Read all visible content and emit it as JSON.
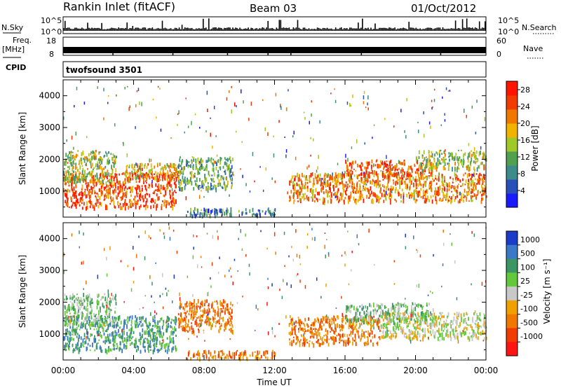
{
  "header": {
    "station": "Rankin Inlet (fitACF)",
    "beam": "Beam 03",
    "date": "01/Oct/2012"
  },
  "status_panels": {
    "nsky_label": "N.Sky",
    "nsearch_label": "N.Search",
    "nsky_ticks": [
      "10^5",
      "10^0"
    ],
    "nsearch_ticks": [
      "10^5",
      "10^0"
    ],
    "freq_label": "Freq.",
    "freq_unit": "[MHz]",
    "freq_ticks": [
      "18",
      "8"
    ],
    "nave_label": "Nave",
    "nave_ticks": [
      "60",
      "0"
    ],
    "cpid_label": "CPID",
    "cpid_value": "twofsound 3501"
  },
  "chart_data": [
    {
      "type": "heatmap",
      "title": "",
      "xlabel": "Time UT",
      "ylabel": "Slant Range [km]",
      "x_ticks": [
        "00:00",
        "04:00",
        "08:00",
        "12:00",
        "16:00",
        "20:00",
        "00:00"
      ],
      "xlim_hours": [
        0,
        24
      ],
      "y_ticks": [
        1000,
        2000,
        3000,
        4000
      ],
      "ylim": [
        180,
        4500
      ],
      "colorbar_label": "Power [dB]",
      "colorbar_ticks": [
        4,
        8,
        12,
        16,
        20,
        24,
        28
      ],
      "colorbar_range": [
        0,
        30
      ],
      "colors": [
        "#1a1aff",
        "#2850b8",
        "#3c8c8c",
        "#50a050",
        "#a0c828",
        "#f0b400",
        "#f07800",
        "#f03c00",
        "#ff1400"
      ],
      "regions": [
        {
          "t": [
            0.0,
            6.4
          ],
          "range_km": [
            500,
            1600
          ],
          "level": 28
        },
        {
          "t": [
            0.0,
            3.0
          ],
          "range_km": [
            1300,
            2300
          ],
          "level": 14
        },
        {
          "t": [
            3.5,
            6.5
          ],
          "range_km": [
            1400,
            1900
          ],
          "level": 18
        },
        {
          "t": [
            6.5,
            9.6
          ],
          "range_km": [
            1100,
            2100
          ],
          "level": 12
        },
        {
          "t": [
            12.8,
            24.0
          ],
          "range_km": [
            700,
            1600
          ],
          "level": 24
        },
        {
          "t": [
            16.0,
            21.0
          ],
          "range_km": [
            1500,
            2000
          ],
          "level": 26
        },
        {
          "t": [
            7.0,
            12.0
          ],
          "range_km": [
            250,
            500
          ],
          "level": 6
        },
        {
          "t": [
            20.0,
            24.0
          ],
          "range_km": [
            1700,
            2300
          ],
          "level": 16
        }
      ]
    },
    {
      "type": "heatmap",
      "title": "",
      "xlabel": "Time UT",
      "ylabel": "Slant Range [km]",
      "x_ticks": [
        "00:00",
        "04:00",
        "08:00",
        "12:00",
        "16:00",
        "20:00",
        "00:00"
      ],
      "xlim_hours": [
        0,
        24
      ],
      "y_ticks": [
        1000,
        2000,
        3000,
        4000
      ],
      "ylim": [
        180,
        4500
      ],
      "colorbar_label": "Velocity [m s⁻¹]",
      "colorbar_ticks": [
        "1000",
        "500",
        "100",
        "25",
        "-25",
        "-100",
        "-500",
        "-1000"
      ],
      "colors": [
        "#1a3cc8",
        "#3c78c8",
        "#3c9664",
        "#64c83c",
        "#c8c8c8",
        "#f0a000",
        "#f07800",
        "#f03c00",
        "#ff1414"
      ],
      "regions": [
        {
          "t": [
            0.0,
            6.4
          ],
          "range_km": [
            500,
            1600
          ],
          "level": 2
        },
        {
          "t": [
            0.0,
            3.0
          ],
          "range_km": [
            1300,
            2300
          ],
          "level": 3
        },
        {
          "t": [
            6.5,
            9.6
          ],
          "range_km": [
            1100,
            2100
          ],
          "level": 6
        },
        {
          "t": [
            12.8,
            18.0
          ],
          "range_km": [
            700,
            1600
          ],
          "level": 6
        },
        {
          "t": [
            18.0,
            24.0
          ],
          "range_km": [
            900,
            1700
          ],
          "level": 4
        },
        {
          "t": [
            7.0,
            12.0
          ],
          "range_km": [
            250,
            500
          ],
          "level": 6
        },
        {
          "t": [
            16.0,
            21.0
          ],
          "range_km": [
            1400,
            2000
          ],
          "level": 3
        }
      ]
    }
  ]
}
